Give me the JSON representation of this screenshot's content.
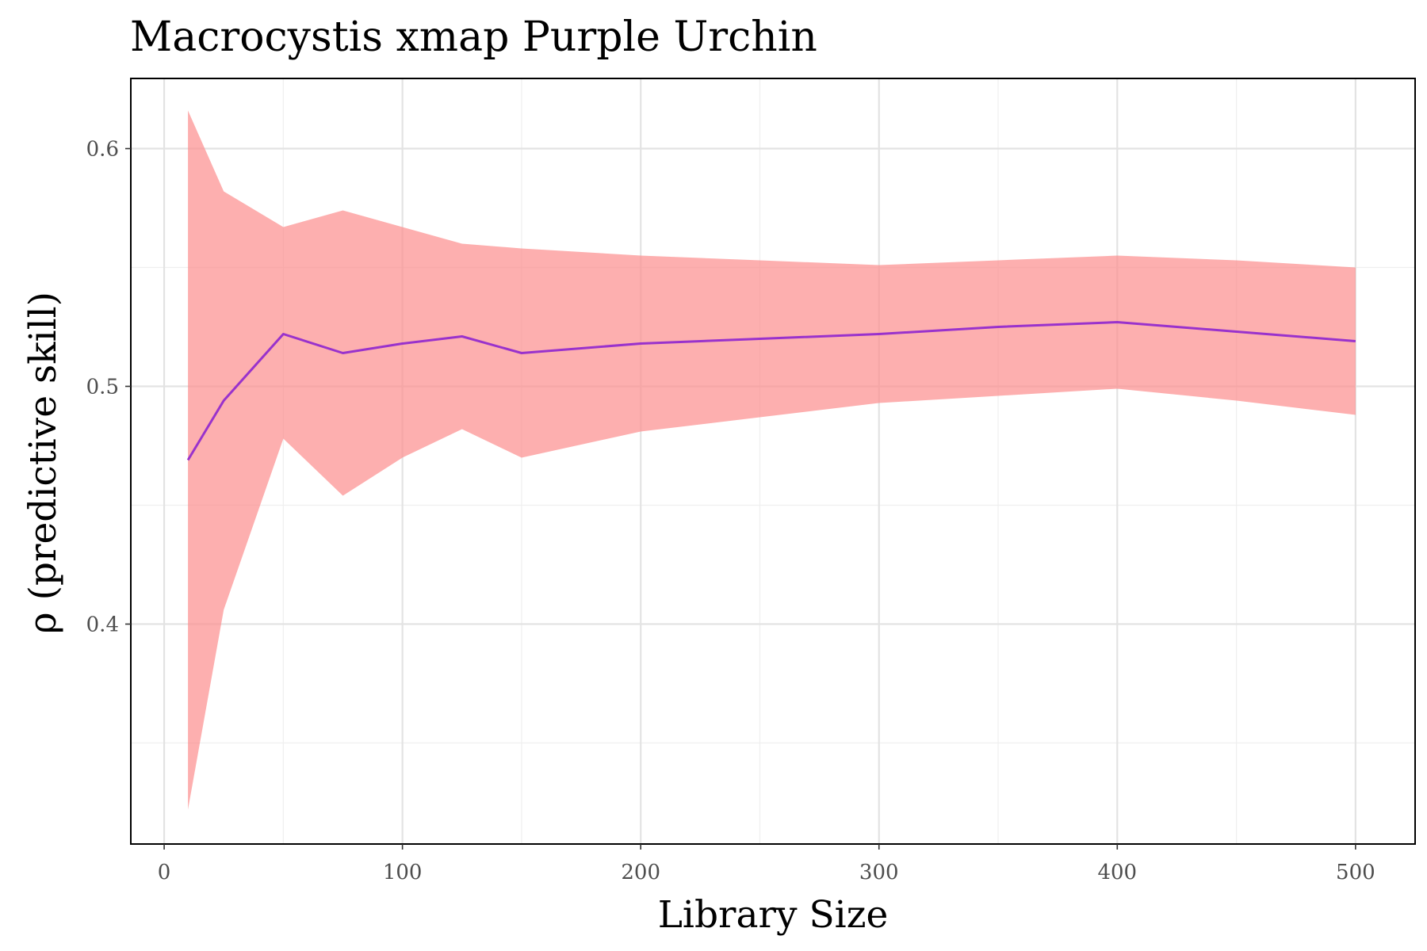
{
  "chart_data": {
    "type": "line",
    "title": "Macrocystis xmap Purple Urchin",
    "xlabel": "Library Size",
    "ylabel": "ρ (predictive skill)",
    "xlim": [
      -14,
      525
    ],
    "ylim": [
      0.3075,
      0.6295
    ],
    "x_ticks": [
      0,
      100,
      200,
      300,
      400,
      500
    ],
    "x_minor_ticks": [
      50,
      150,
      250,
      350,
      450
    ],
    "y_ticks": [
      0.4,
      0.5,
      0.6
    ],
    "y_minor_ticks": [
      0.35,
      0.45,
      0.55
    ],
    "grid": true,
    "legend": "none",
    "colors": {
      "line": "#9932cc",
      "ribbon": "#fc8d8d",
      "ribbon_opacity": 0.7
    },
    "x": [
      10,
      25,
      50,
      75,
      100,
      125,
      150,
      200,
      250,
      300,
      350,
      400,
      450,
      500
    ],
    "series": [
      {
        "values": [
          0.469,
          0.494,
          0.522,
          0.514,
          0.518,
          0.521,
          0.514,
          0.518,
          0.52,
          0.522,
          0.525,
          0.527,
          0.523,
          0.519
        ]
      }
    ],
    "ribbon": {
      "lower": [
        0.322,
        0.406,
        0.478,
        0.454,
        0.47,
        0.482,
        0.47,
        0.481,
        0.487,
        0.493,
        0.496,
        0.499,
        0.494,
        0.488
      ],
      "upper": [
        0.616,
        0.582,
        0.567,
        0.574,
        0.567,
        0.56,
        0.558,
        0.555,
        0.553,
        0.551,
        0.553,
        0.555,
        0.553,
        0.55
      ]
    }
  }
}
